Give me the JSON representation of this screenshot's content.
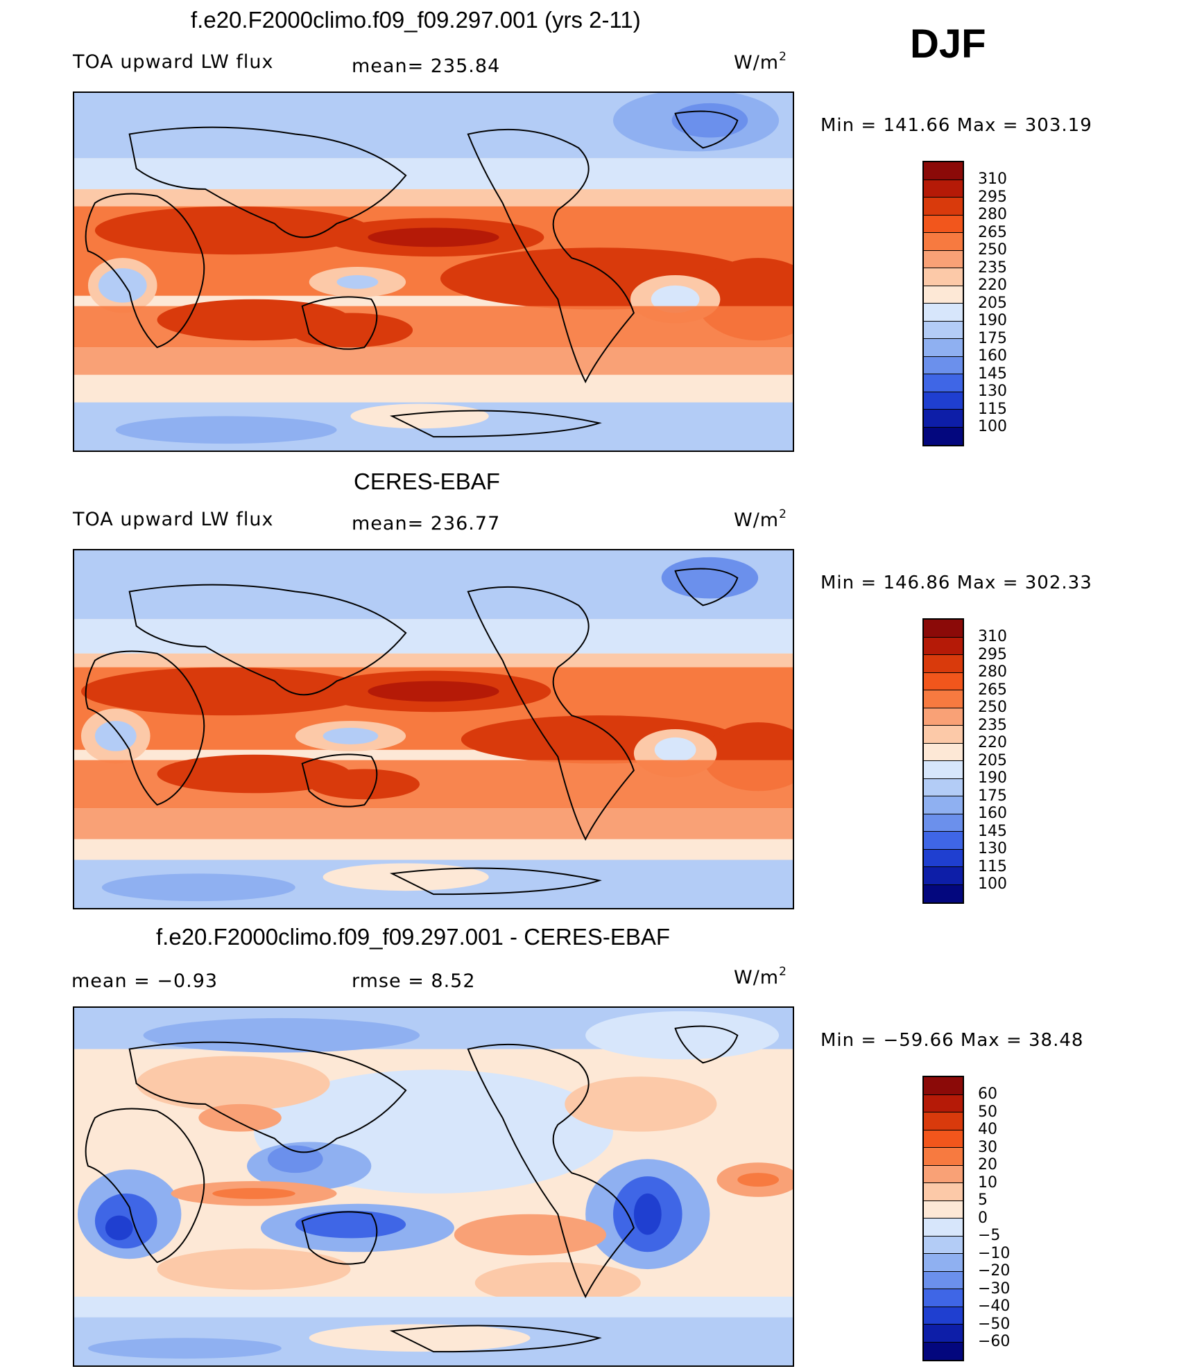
{
  "season": "DJF",
  "panels": [
    {
      "title": "f.e20.F2000climo.f09_f09.297.001 (yrs 2-11)",
      "left_label": "TOA upward LW flux",
      "center_label": "mean= 235.84",
      "units": "W/m",
      "units_sup": "2",
      "minmax": "Min  =  141.66  Max  =  303.19",
      "colorbar": [
        "310",
        "295",
        "280",
        "265",
        "250",
        "235",
        "220",
        "205",
        "190",
        "175",
        "160",
        "145",
        "130",
        "115",
        "100"
      ],
      "kind": "abs"
    },
    {
      "title": "CERES-EBAF",
      "left_label": "TOA upward LW flux",
      "center_label": "mean= 236.77",
      "units": "W/m",
      "units_sup": "2",
      "minmax": "Min  =  146.86  Max  =  302.33",
      "colorbar": [
        "310",
        "295",
        "280",
        "265",
        "250",
        "235",
        "220",
        "205",
        "190",
        "175",
        "160",
        "145",
        "130",
        "115",
        "100"
      ],
      "kind": "abs"
    },
    {
      "title": "f.e20.F2000climo.f09_f09.297.001 - CERES-EBAF",
      "left_label": "mean  =    −0.93",
      "center_label": "rmse  =     8.52",
      "units": "W/m",
      "units_sup": "2",
      "minmax": "Min  =  −59.66  Max  =    38.48",
      "colorbar": [
        "60",
        "50",
        "40",
        "30",
        "20",
        "10",
        "5",
        "0",
        "−5",
        "−10",
        "−20",
        "−30",
        "−40",
        "−50",
        "−60"
      ],
      "kind": "diff"
    }
  ],
  "colors": {
    "palette": [
      "#8b0a08",
      "#b51a07",
      "#d93a0c",
      "#f2561c",
      "#f77a40",
      "#f9a176",
      "#fcc9a8",
      "#fde8d6",
      "#d7e6fb",
      "#b3ccf6",
      "#8fb0f1",
      "#6b90ec",
      "#3f66e6",
      "#1f3fd0",
      "#0d1ea8",
      "#03077e"
    ]
  }
}
